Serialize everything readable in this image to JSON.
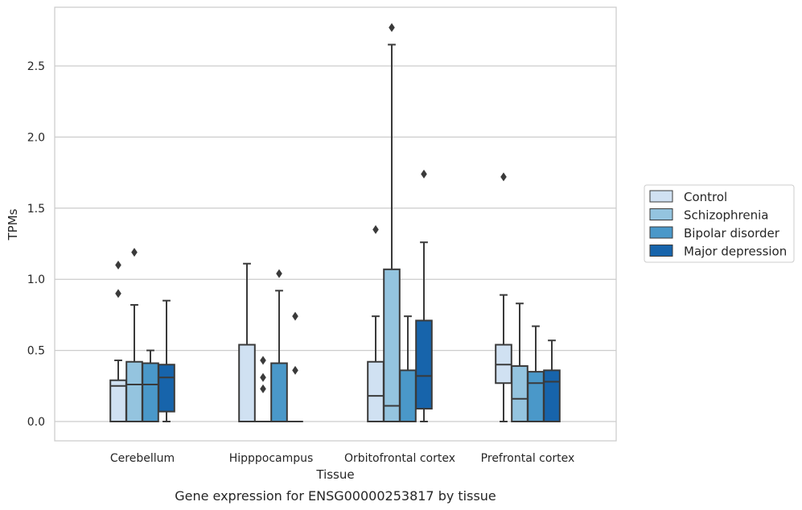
{
  "chart_data": {
    "type": "box",
    "caption": "Gene expression for ENSG00000253817 by tissue",
    "xlabel": "Tissue",
    "ylabel": "TPMs",
    "ylim": [
      -0.135,
      2.91
    ],
    "yticks": [
      0.0,
      0.5,
      1.0,
      1.5,
      2.0,
      2.5
    ],
    "ytick_labels": [
      "0.0",
      "0.5",
      "1.0",
      "1.5",
      "2.0",
      "2.5"
    ],
    "grid": "horizontal",
    "legend_position": "right",
    "categories": [
      "Cerebellum",
      "Hipppocampus",
      "Orbitofrontal cortex",
      "Prefrontal cortex"
    ],
    "series": [
      {
        "name": "Control",
        "color": "#d0e1f2",
        "boxes": [
          {
            "q1": 0.0,
            "median": 0.25,
            "q3": 0.29,
            "whisker_low": 0.0,
            "whisker_high": 0.43,
            "outliers": [
              0.9,
              1.1
            ]
          },
          {
            "q1": 0.0,
            "median": 0.0,
            "q3": 0.54,
            "whisker_low": 0.0,
            "whisker_high": 1.11,
            "outliers": []
          },
          {
            "q1": 0.0,
            "median": 0.18,
            "q3": 0.42,
            "whisker_low": 0.0,
            "whisker_high": 0.74,
            "outliers": [
              1.35
            ]
          },
          {
            "q1": 0.27,
            "median": 0.4,
            "q3": 0.54,
            "whisker_low": 0.0,
            "whisker_high": 0.89,
            "outliers": [
              1.72
            ]
          }
        ]
      },
      {
        "name": "Schizophrenia",
        "color": "#94c4df",
        "boxes": [
          {
            "q1": 0.0,
            "median": 0.26,
            "q3": 0.42,
            "whisker_low": 0.0,
            "whisker_high": 0.82,
            "outliers": [
              1.19
            ]
          },
          {
            "q1": 0.0,
            "median": 0.0,
            "q3": 0.0,
            "whisker_low": 0.0,
            "whisker_high": 0.0,
            "outliers": [
              0.23,
              0.31,
              0.43
            ]
          },
          {
            "q1": 0.0,
            "median": 0.11,
            "q3": 1.07,
            "whisker_low": 0.0,
            "whisker_high": 2.65,
            "outliers": [
              2.77
            ]
          },
          {
            "q1": 0.0,
            "median": 0.16,
            "q3": 0.39,
            "whisker_low": 0.0,
            "whisker_high": 0.83,
            "outliers": []
          }
        ]
      },
      {
        "name": "Bipolar disorder",
        "color": "#4a98c9",
        "boxes": [
          {
            "q1": 0.0,
            "median": 0.26,
            "q3": 0.41,
            "whisker_low": 0.0,
            "whisker_high": 0.5,
            "outliers": []
          },
          {
            "q1": 0.0,
            "median": 0.0,
            "q3": 0.41,
            "whisker_low": 0.0,
            "whisker_high": 0.92,
            "outliers": [
              1.04
            ]
          },
          {
            "q1": 0.0,
            "median": 0.0,
            "q3": 0.36,
            "whisker_low": 0.0,
            "whisker_high": 0.74,
            "outliers": []
          },
          {
            "q1": 0.0,
            "median": 0.27,
            "q3": 0.35,
            "whisker_low": 0.0,
            "whisker_high": 0.67,
            "outliers": []
          }
        ]
      },
      {
        "name": "Major depression",
        "color": "#1764ab",
        "boxes": [
          {
            "q1": 0.07,
            "median": 0.31,
            "q3": 0.4,
            "whisker_low": 0.0,
            "whisker_high": 0.85,
            "outliers": []
          },
          {
            "q1": 0.0,
            "median": 0.0,
            "q3": 0.0,
            "whisker_low": 0.0,
            "whisker_high": 0.0,
            "outliers": [
              0.36,
              0.74
            ]
          },
          {
            "q1": 0.09,
            "median": 0.32,
            "q3": 0.71,
            "whisker_low": 0.0,
            "whisker_high": 1.26,
            "outliers": [
              1.74
            ]
          },
          {
            "q1": 0.0,
            "median": 0.28,
            "q3": 0.36,
            "whisker_low": 0.0,
            "whisker_high": 0.57,
            "outliers": []
          }
        ]
      }
    ]
  }
}
